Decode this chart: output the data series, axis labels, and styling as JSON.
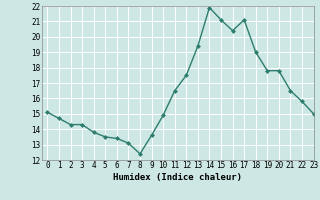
{
  "x": [
    0,
    1,
    2,
    3,
    4,
    5,
    6,
    7,
    8,
    9,
    10,
    11,
    12,
    13,
    14,
    15,
    16,
    17,
    18,
    19,
    20,
    21,
    22,
    23
  ],
  "y": [
    15.1,
    14.7,
    14.3,
    14.3,
    13.8,
    13.5,
    13.4,
    13.1,
    12.4,
    13.6,
    14.9,
    16.5,
    17.5,
    19.4,
    21.9,
    21.1,
    20.4,
    21.1,
    19.0,
    17.8,
    17.8,
    16.5,
    15.8,
    15.0
  ],
  "line_color": "#2e7d6e",
  "marker": "D",
  "marker_size": 2,
  "bg_color": "#cde8e4",
  "grid_color": "#ffffff",
  "xlabel": "Humidex (Indice chaleur)",
  "ylim": [
    12,
    22
  ],
  "xlim": [
    -0.5,
    23
  ],
  "yticks": [
    12,
    13,
    14,
    15,
    16,
    17,
    18,
    19,
    20,
    21,
    22
  ],
  "xticks": [
    0,
    1,
    2,
    3,
    4,
    5,
    6,
    7,
    8,
    9,
    10,
    11,
    12,
    13,
    14,
    15,
    16,
    17,
    18,
    19,
    20,
    21,
    22,
    23
  ],
  "tick_fontsize": 5.5,
  "xlabel_fontsize": 6.5,
  "line_width": 1.0
}
